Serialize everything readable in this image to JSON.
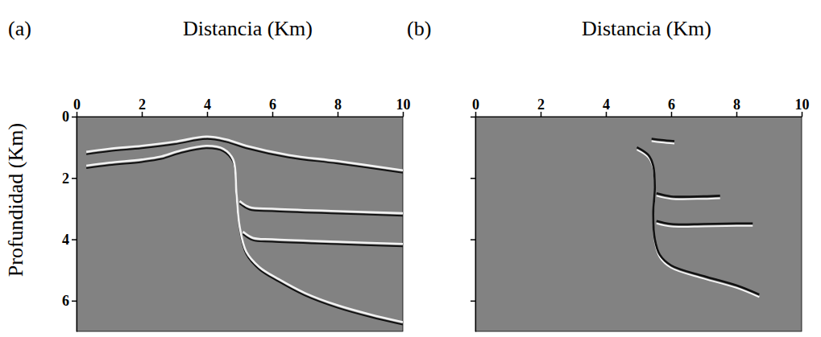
{
  "chart_data": [
    {
      "type": "line",
      "panel_label": "(a)",
      "x_label": "Distancia (Km)",
      "y_label": "Profundidad (Km)",
      "xlim": [
        0,
        10
      ],
      "ylim": [
        0,
        7
      ],
      "xticks": [
        0,
        2,
        4,
        6,
        8,
        10
      ],
      "yticks": [
        0,
        2,
        4,
        6
      ],
      "tick_labels": true,
      "grid": false,
      "series": [
        {
          "color": "#f2f2f2",
          "x": [
            0.3,
            1.0,
            2.0,
            3.0,
            4.0,
            4.6,
            5.2,
            6.5,
            8.0,
            10.0
          ],
          "values": [
            1.15,
            1.05,
            0.95,
            0.82,
            0.65,
            0.75,
            0.95,
            1.25,
            1.45,
            1.75
          ]
        },
        {
          "color": "#f2f2f2",
          "x": [
            0.3,
            1.0,
            2.0,
            2.6,
            3.2,
            4.0,
            4.5,
            4.8,
            4.9,
            5.0,
            5.2,
            5.6,
            6.2,
            7.0,
            8.0,
            9.0,
            10.0
          ],
          "values": [
            1.6,
            1.5,
            1.4,
            1.3,
            1.1,
            0.95,
            1.05,
            1.4,
            2.5,
            3.6,
            4.4,
            4.9,
            5.3,
            5.75,
            6.15,
            6.45,
            6.7
          ]
        },
        {
          "color": "#f2f2f2",
          "x": [
            5.0,
            5.3,
            6.0,
            8.0,
            10.0
          ],
          "values": [
            2.75,
            2.95,
            3.0,
            3.08,
            3.15
          ]
        },
        {
          "color": "#f2f2f2",
          "x": [
            5.1,
            5.4,
            6.0,
            8.0,
            10.0
          ],
          "values": [
            3.75,
            3.95,
            4.0,
            4.08,
            4.15
          ]
        }
      ]
    },
    {
      "type": "line",
      "panel_label": "(b)",
      "x_label": "Distancia (Km)",
      "xlim": [
        0,
        10
      ],
      "ylim": [
        0,
        7
      ],
      "xticks": [
        0,
        2,
        4,
        6,
        8,
        10
      ],
      "yticks": [
        0,
        2,
        4,
        6
      ],
      "tick_labels": "x",
      "grid": false,
      "series": [
        {
          "color": "#111111",
          "x": [
            5.4,
            5.7,
            6.1
          ],
          "values": [
            0.72,
            0.76,
            0.8
          ]
        },
        {
          "color": "#111111",
          "x": [
            4.95,
            5.3,
            5.45,
            5.5,
            5.45,
            5.5,
            5.65,
            6.0,
            7.0,
            8.0,
            8.7
          ],
          "values": [
            1.0,
            1.25,
            1.6,
            2.3,
            3.2,
            4.0,
            4.5,
            4.85,
            5.2,
            5.5,
            5.8
          ]
        },
        {
          "color": "#111111",
          "x": [
            5.55,
            6.0,
            7.0,
            7.5
          ],
          "values": [
            2.5,
            2.6,
            2.6,
            2.58
          ]
        },
        {
          "color": "#111111",
          "x": [
            5.55,
            6.0,
            7.0,
            8.0,
            8.5
          ],
          "values": [
            3.4,
            3.5,
            3.5,
            3.48,
            3.48
          ]
        }
      ]
    }
  ]
}
